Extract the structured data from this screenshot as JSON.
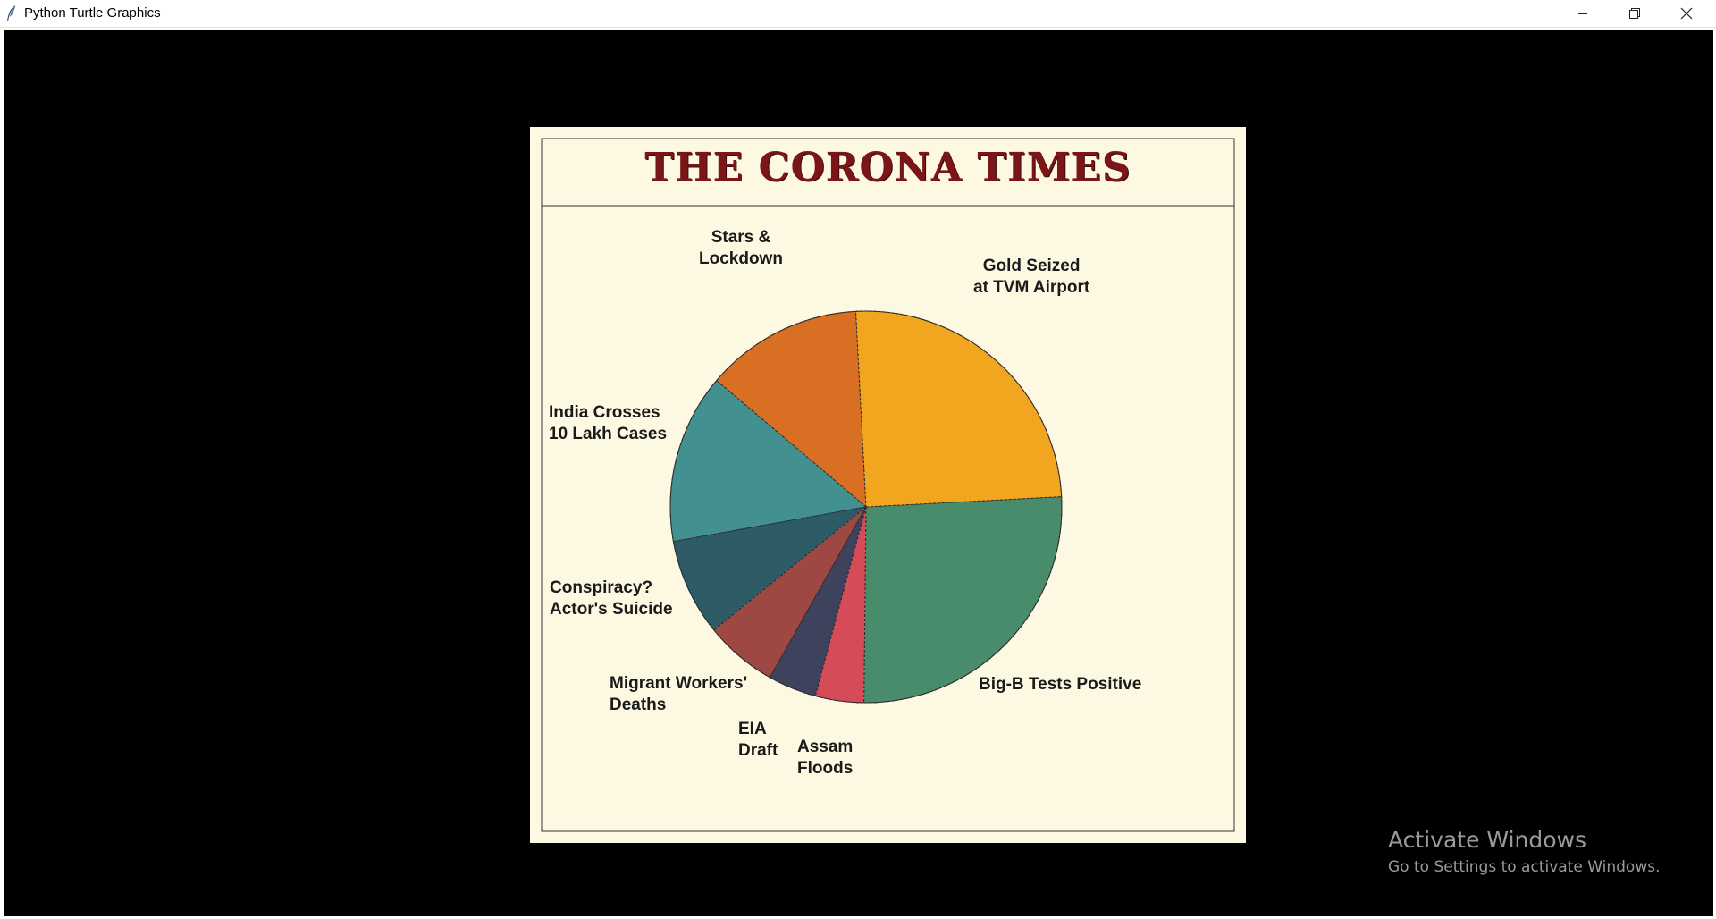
{
  "window": {
    "title": "Python Turtle Graphics",
    "icon": "feather-icon",
    "controls": [
      "minimize-icon",
      "restore-icon",
      "close-icon"
    ]
  },
  "newspaper": {
    "masthead": "THE CORONA TIMES",
    "masthead_color": "#7a1518",
    "background_color": "#fdf8e2"
  },
  "chart_data": {
    "type": "pie",
    "start_angle_deg": 93,
    "direction": "counterclockwise-from-top",
    "slices": [
      {
        "label": [
          "Stars &",
          "Lockdown"
        ],
        "value": 0.13,
        "color": "#d96f23"
      },
      {
        "label": [
          "India Crosses",
          "10 Lakh Cases"
        ],
        "value": 0.14,
        "color": "#42908f"
      },
      {
        "label": [
          "Conspiracy?",
          "Actor's Suicide"
        ],
        "value": 0.08,
        "color": "#2d5b66"
      },
      {
        "label": [
          "Migrant Workers'",
          "Deaths"
        ],
        "value": 0.06,
        "color": "#9e4843"
      },
      {
        "label": [
          "EIA",
          "Draft"
        ],
        "value": 0.04,
        "color": "#3f425c"
      },
      {
        "label": [
          "Assam",
          "Floods"
        ],
        "value": 0.04,
        "color": "#d64b58"
      },
      {
        "label": [
          "Big-B Tests Positive"
        ],
        "value": 0.26,
        "color": "#488c6b"
      },
      {
        "label": [
          "Gold Seized",
          "at TVM Airport"
        ],
        "value": 0.25,
        "color": "#f2a51f"
      }
    ]
  },
  "watermark": {
    "title": "Activate Windows",
    "subtitle": "Go to Settings to activate Windows."
  }
}
